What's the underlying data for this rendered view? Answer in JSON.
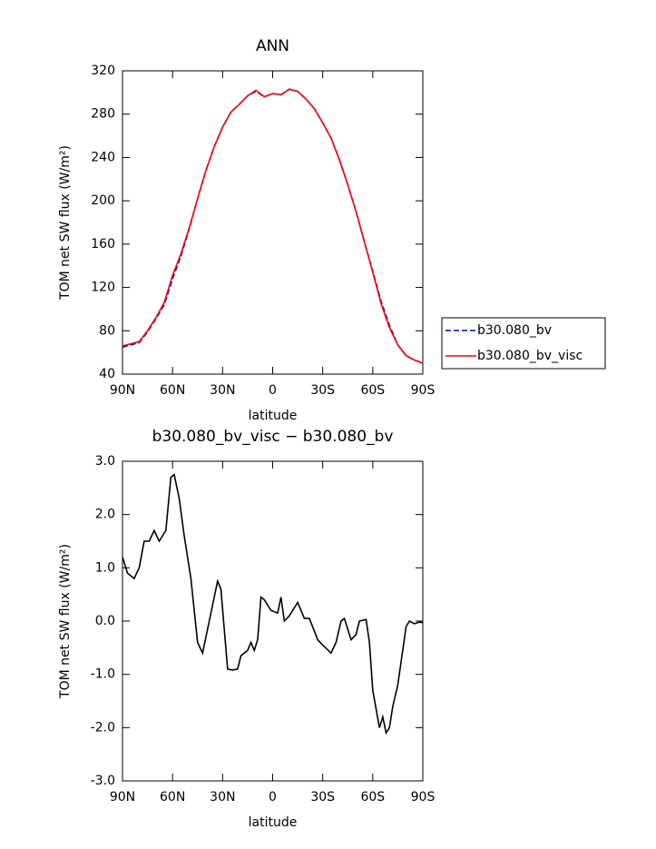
{
  "chart_data": [
    {
      "type": "line",
      "title": "ANN",
      "xlabel": "latitude",
      "ylabel": "TOM net SW flux (W/m²)",
      "x": [
        90,
        85,
        80,
        75,
        70,
        65,
        60,
        55,
        50,
        45,
        40,
        35,
        30,
        25,
        20,
        15,
        10,
        5,
        0,
        -5,
        -10,
        -15,
        -20,
        -25,
        -30,
        -35,
        -40,
        -45,
        -50,
        -55,
        -60,
        -65,
        -70,
        -75,
        -80,
        -85,
        -90
      ],
      "series": [
        {
          "name": "b30.080_bv",
          "color": "#0000cc",
          "style": "dashed",
          "values": [
            65,
            67,
            69,
            79,
            91,
            104,
            128,
            149,
            174,
            202,
            228,
            250,
            268,
            282,
            289,
            297,
            301,
            296,
            299,
            298,
            303,
            301,
            294,
            285,
            272,
            258,
            238,
            215,
            190,
            162,
            135,
            107,
            85,
            67,
            57,
            53,
            50
          ]
        },
        {
          "name": "b30.080_bv_visc",
          "color": "#ff0000",
          "style": "solid",
          "values": [
            66,
            68,
            70,
            80,
            92,
            106,
            131,
            151,
            175,
            202,
            228,
            250,
            268,
            282,
            289,
            297,
            302,
            296,
            299,
            298,
            303,
            301,
            294,
            285,
            272,
            258,
            238,
            215,
            190,
            162,
            134,
            105,
            83,
            67,
            57,
            53,
            50
          ]
        }
      ],
      "xlim": [
        90,
        -90
      ],
      "xticks": [
        {
          "value": 90,
          "label": "90N"
        },
        {
          "value": 60,
          "label": "60N"
        },
        {
          "value": 30,
          "label": "30N"
        },
        0,
        {
          "value": -30,
          "label": "30S"
        },
        {
          "value": -60,
          "label": "60S"
        },
        {
          "value": -90,
          "label": "90S"
        }
      ],
      "ylim": [
        40,
        320
      ],
      "yticks": [
        40,
        80,
        120,
        160,
        200,
        240,
        280,
        320
      ],
      "legend": "right"
    },
    {
      "type": "line",
      "title": "b30.080_bv_visc − b30.080_bv",
      "xlabel": "latitude",
      "ylabel": "TOM net SW flux (W/m²)",
      "x": [
        90,
        87,
        83,
        80,
        77,
        74,
        71,
        68,
        64,
        61,
        59,
        56,
        53,
        49,
        45,
        42,
        38,
        33,
        31,
        27,
        24,
        21,
        19,
        15,
        13,
        11,
        9,
        7,
        5,
        1,
        -3,
        -5,
        -7,
        -10,
        -15,
        -19,
        -22,
        -27,
        -30,
        -35,
        -38,
        -41,
        -43,
        -47,
        -50,
        -52,
        -56,
        -58,
        -60,
        -64,
        -66,
        -68,
        -70,
        -72,
        -75,
        -80,
        -82,
        -85,
        -88,
        -90
      ],
      "series": [
        {
          "color": "#000000",
          "style": "solid",
          "values": [
            1.2,
            0.9,
            0.8,
            1.0,
            1.5,
            1.5,
            1.7,
            1.5,
            1.7,
            2.7,
            2.75,
            2.3,
            1.6,
            0.8,
            -0.4,
            -0.6,
            0.0,
            0.75,
            0.6,
            -0.9,
            -0.92,
            -0.9,
            -0.65,
            -0.55,
            -0.4,
            -0.55,
            -0.35,
            0.45,
            0.4,
            0.2,
            0.15,
            0.45,
            0.0,
            0.1,
            0.35,
            0.05,
            0.05,
            -0.35,
            -0.45,
            -0.6,
            -0.4,
            0.0,
            0.05,
            -0.35,
            -0.25,
            0.0,
            0.03,
            -0.4,
            -1.3,
            -2.0,
            -1.8,
            -2.1,
            -2.0,
            -1.6,
            -1.2,
            -0.1,
            0.0,
            -0.05,
            -0.02,
            -0.03
          ]
        }
      ],
      "xlim": [
        90,
        -90
      ],
      "xticks": [
        {
          "value": 90,
          "label": "90N"
        },
        {
          "value": 60,
          "label": "60N"
        },
        {
          "value": 30,
          "label": "30N"
        },
        0,
        {
          "value": -30,
          "label": "30S"
        },
        {
          "value": -60,
          "label": "60S"
        },
        {
          "value": -90,
          "label": "90S"
        }
      ],
      "ylim": [
        -3,
        3
      ],
      "yticks": [
        {
          "value": -3,
          "label": "-3.0"
        },
        {
          "value": -2,
          "label": "-2.0"
        },
        {
          "value": -1,
          "label": "-1.0"
        },
        {
          "value": 0,
          "label": "0.0"
        },
        {
          "value": 1,
          "label": "1.0"
        },
        {
          "value": 2,
          "label": "2.0"
        },
        {
          "value": 3,
          "label": "3.0"
        }
      ]
    }
  ]
}
